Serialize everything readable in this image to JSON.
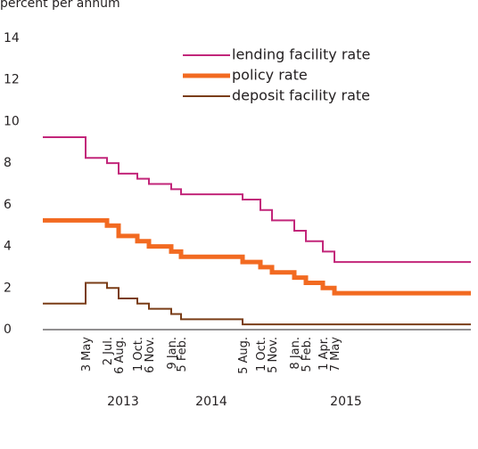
{
  "chart_data": {
    "type": "step",
    "y_label": "percent per annum",
    "categories": [
      null,
      "3 May",
      "2 Jul.",
      "6 Aug.",
      "1 Oct.",
      "6 Nov.",
      "9 Jan.",
      "5 Feb.",
      "5 Aug.",
      "1 Oct.",
      "5 Nov.",
      "8 Jan.",
      "5 Feb.",
      "1 Apr.",
      "7 May",
      null
    ],
    "x_groups": [
      "2013",
      "2014",
      "2015"
    ],
    "series": [
      {
        "name": "lending facility rate",
        "color": "#c2267a",
        "values": [
          9.25,
          8.25,
          8.0,
          7.5,
          7.25,
          7.0,
          6.75,
          6.5,
          6.25,
          5.75,
          5.25,
          4.75,
          4.25,
          3.75,
          3.25,
          3.25
        ]
      },
      {
        "name": "policy rate",
        "color": "#f26a21",
        "values": [
          5.25,
          5.25,
          5.0,
          4.5,
          4.25,
          4.0,
          3.75,
          3.5,
          3.25,
          3.0,
          2.75,
          2.5,
          2.25,
          2.0,
          1.75,
          1.75
        ]
      },
      {
        "name": "deposit facility rate",
        "color": "#7a3d17",
        "values": [
          1.25,
          2.25,
          2.0,
          1.5,
          1.25,
          1.0,
          0.75,
          0.5,
          0.25,
          0.25,
          0.25,
          0.25,
          0.25,
          0.25,
          0.25,
          0.25
        ]
      }
    ],
    "ylim": [
      0,
      14
    ],
    "yticks": [
      0,
      2,
      4,
      6,
      8,
      10,
      12,
      14
    ],
    "grid": false,
    "legend": "upper right"
  }
}
